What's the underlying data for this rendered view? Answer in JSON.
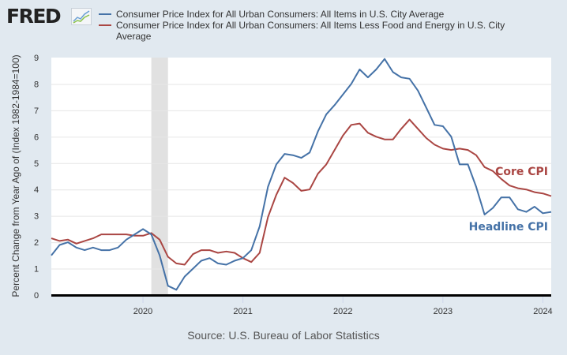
{
  "header": {
    "logo_text": "FRED",
    "logo_icon": "line-chart-icon"
  },
  "source_text": "Source: U.S. Bureau of Labor Statistics",
  "chart_data": {
    "type": "line",
    "title": "",
    "xlabel": "",
    "ylabel": "Percent Change from Year Ago of (Index 1982-1984=100)",
    "ylim": [
      0,
      9
    ],
    "yticks": [
      "0",
      "1",
      "2",
      "3",
      "4",
      "5",
      "6",
      "7",
      "8",
      "9"
    ],
    "xticks": [
      "2020",
      "2021",
      "2022",
      "2023",
      "2024"
    ],
    "x_start": "2019-02",
    "x_end": "2024-02",
    "grid": true,
    "legend_position": "top",
    "recession": {
      "start": "2020-02",
      "end": "2020-04",
      "color": "#e1e1e1"
    },
    "x": [
      "2019-02",
      "2019-03",
      "2019-04",
      "2019-05",
      "2019-06",
      "2019-07",
      "2019-08",
      "2019-09",
      "2019-10",
      "2019-11",
      "2019-12",
      "2020-01",
      "2020-02",
      "2020-03",
      "2020-04",
      "2020-05",
      "2020-06",
      "2020-07",
      "2020-08",
      "2020-09",
      "2020-10",
      "2020-11",
      "2020-12",
      "2021-01",
      "2021-02",
      "2021-03",
      "2021-04",
      "2021-05",
      "2021-06",
      "2021-07",
      "2021-08",
      "2021-09",
      "2021-10",
      "2021-11",
      "2021-12",
      "2022-01",
      "2022-02",
      "2022-03",
      "2022-04",
      "2022-05",
      "2022-06",
      "2022-07",
      "2022-08",
      "2022-09",
      "2022-10",
      "2022-11",
      "2022-12",
      "2023-01",
      "2023-02",
      "2023-03",
      "2023-04",
      "2023-05",
      "2023-06",
      "2023-07",
      "2023-08",
      "2023-09",
      "2023-10",
      "2023-11",
      "2023-12",
      "2024-01",
      "2024-02"
    ],
    "series": [
      {
        "name": "Consumer Price Index for All Urban Consumers: All Items in U.S. City Average",
        "color": "#4572a7",
        "annotation": "Headline CPI",
        "values": [
          1.5,
          1.9,
          2.0,
          1.8,
          1.7,
          1.8,
          1.7,
          1.7,
          1.8,
          2.1,
          2.3,
          2.5,
          2.3,
          1.5,
          0.35,
          0.2,
          0.7,
          1.0,
          1.3,
          1.4,
          1.2,
          1.15,
          1.3,
          1.4,
          1.7,
          2.6,
          4.1,
          4.95,
          5.35,
          5.3,
          5.2,
          5.4,
          6.2,
          6.85,
          7.2,
          7.6,
          8.0,
          8.55,
          8.25,
          8.55,
          8.95,
          8.45,
          8.25,
          8.2,
          7.75,
          7.1,
          6.45,
          6.4,
          6.0,
          4.95,
          4.95,
          4.1,
          3.05,
          3.3,
          3.7,
          3.7,
          3.25,
          3.15,
          3.35,
          3.1,
          3.15
        ]
      },
      {
        "name": "Consumer Price Index for All Urban Consumers: All Items Less Food and Energy in U.S. City Average",
        "color": "#aa4643",
        "annotation": "Core CPI",
        "values": [
          2.15,
          2.05,
          2.1,
          1.95,
          2.05,
          2.15,
          2.3,
          2.3,
          2.3,
          2.3,
          2.25,
          2.25,
          2.35,
          2.1,
          1.45,
          1.2,
          1.15,
          1.55,
          1.7,
          1.7,
          1.6,
          1.65,
          1.6,
          1.4,
          1.25,
          1.6,
          2.95,
          3.8,
          4.45,
          4.25,
          3.95,
          4.0,
          4.6,
          4.95,
          5.5,
          6.05,
          6.45,
          6.5,
          6.15,
          6.0,
          5.9,
          5.9,
          6.3,
          6.65,
          6.3,
          5.95,
          5.7,
          5.55,
          5.5,
          5.55,
          5.5,
          5.3,
          4.85,
          4.7,
          4.4,
          4.15,
          4.05,
          4.0,
          3.9,
          3.85,
          3.75
        ]
      }
    ]
  }
}
